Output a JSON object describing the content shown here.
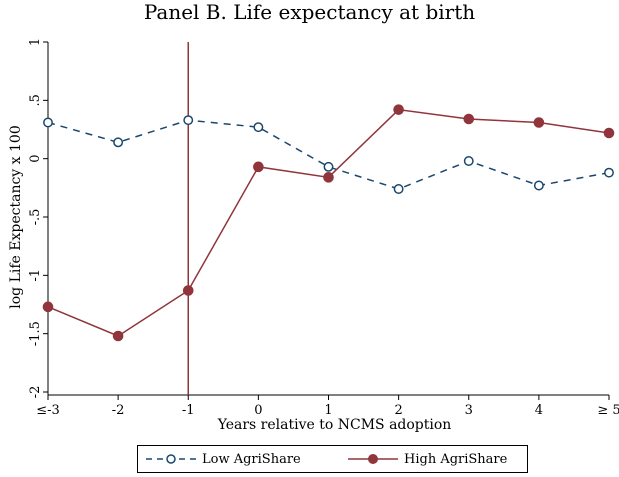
{
  "chart_data": {
    "type": "line",
    "title": "Panel B. Life expectancy at birth",
    "xlabel": "Years relative to NCMS adoption",
    "ylabel": "log Life Expectancy x 100",
    "categories": [
      "≤-3",
      "-2",
      "-1",
      "0",
      "1",
      "2",
      "3",
      "4",
      "≥ 5"
    ],
    "x": [
      -3,
      -2,
      -1,
      0,
      1,
      2,
      3,
      4,
      5
    ],
    "xlim": [
      -3,
      5
    ],
    "ylim": [
      -2,
      1
    ],
    "yticks": [
      1,
      0.5,
      0,
      -0.5,
      -1,
      -1.5,
      -2
    ],
    "ytick_labels": [
      "1",
      ".5",
      "0",
      "-.5",
      "-1",
      "-1.5",
      "-2"
    ],
    "reference_line_x": -1,
    "grid": false,
    "legend_position": "bottom",
    "series": [
      {
        "name": "Low AgriShare",
        "values": [
          0.31,
          0.14,
          0.33,
          0.27,
          -0.07,
          -0.26,
          -0.02,
          -0.23,
          -0.12
        ],
        "color": "#1a476f",
        "line_style": "dashed",
        "marker": "hollow-circle"
      },
      {
        "name": "High AgriShare",
        "values": [
          -1.27,
          -1.52,
          -1.13,
          -0.07,
          -0.16,
          0.42,
          0.34,
          0.31,
          0.22
        ],
        "color": "#90353b",
        "line_style": "solid",
        "marker": "filled-circle"
      }
    ]
  }
}
